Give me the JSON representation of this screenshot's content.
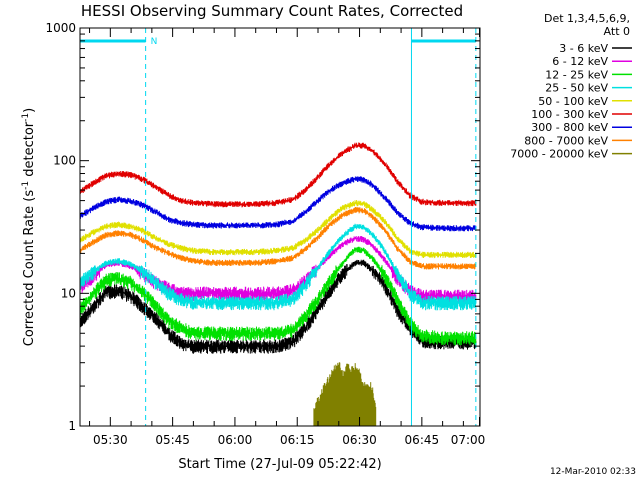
{
  "chart_data": {
    "type": "line",
    "title": "HESSI Observing Summary Count Rates, Corrected",
    "xlabel": "Start Time (27-Jul-09 05:22:42)",
    "ylabel": "Corrected Count Rate (s",
    "ylabel_sup1": "-1",
    "ylabel_mid": " detector",
    "ylabel_sup2": "-1",
    "ylabel_end": ")",
    "y_scale": "log",
    "ylim": [
      1,
      1000
    ],
    "y_ticks": [
      {
        "value": 1,
        "label": "1"
      },
      {
        "value": 10,
        "label": "10"
      },
      {
        "value": 100,
        "label": "100"
      },
      {
        "value": 1000,
        "label": "1000"
      }
    ],
    "xlim_minutes_after_0500": [
      22.7,
      119
    ],
    "x_ticks": [
      {
        "t": 30,
        "label": "05:30"
      },
      {
        "t": 45,
        "label": "05:45"
      },
      {
        "t": 60,
        "label": "06:00"
      },
      {
        "t": 75,
        "label": "06:15"
      },
      {
        "t": 90,
        "label": "06:30"
      },
      {
        "t": 105,
        "label": "06:45"
      },
      {
        "t": 120,
        "label": "07:00"
      }
    ],
    "legend": {
      "position": "right",
      "header": [
        "Det 1,3,4,5,6,9,",
        "Att 0"
      ]
    },
    "night_markers": {
      "day_bars": [
        [
          22.7,
          38.5
        ],
        [
          102.5,
          118
        ]
      ],
      "label": "N",
      "label_t": 39.5,
      "dashed_lines": [
        38.5,
        118
      ],
      "solid_lines": [
        22.7,
        102.5
      ]
    },
    "series": [
      {
        "name": "3 - 6 keV",
        "color": "#000000",
        "points": [
          [
            22.7,
            6
          ],
          [
            26,
            8
          ],
          [
            29,
            10.2
          ],
          [
            32,
            10.5
          ],
          [
            35,
            9.5
          ],
          [
            38,
            7.8
          ],
          [
            41,
            6.5
          ],
          [
            44,
            5
          ],
          [
            47,
            4.2
          ],
          [
            50,
            4
          ],
          [
            55,
            4
          ],
          [
            60,
            4
          ],
          [
            65,
            4
          ],
          [
            70,
            4
          ],
          [
            74,
            4.3
          ],
          [
            77,
            5.5
          ],
          [
            80,
            7.5
          ],
          [
            83,
            10.5
          ],
          [
            86,
            14
          ],
          [
            89,
            17
          ],
          [
            91,
            17
          ],
          [
            93,
            15
          ],
          [
            96,
            11.5
          ],
          [
            99,
            7.5
          ],
          [
            102,
            5.5
          ],
          [
            105,
            4.4
          ],
          [
            110,
            4.3
          ],
          [
            118,
            4.3
          ]
        ]
      },
      {
        "name": "6 - 12 keV",
        "color": "#e000e0",
        "points": [
          [
            22.7,
            11
          ],
          [
            26,
            13.5
          ],
          [
            29,
            16.5
          ],
          [
            32,
            17
          ],
          [
            35,
            16
          ],
          [
            38,
            14
          ],
          [
            41,
            12
          ],
          [
            44,
            10.8
          ],
          [
            47,
            10
          ],
          [
            50,
            10
          ],
          [
            55,
            10
          ],
          [
            60,
            10
          ],
          [
            65,
            10
          ],
          [
            70,
            10
          ],
          [
            74,
            10.5
          ],
          [
            77,
            12.5
          ],
          [
            80,
            15.5
          ],
          [
            83,
            19.5
          ],
          [
            86,
            23.5
          ],
          [
            89,
            26
          ],
          [
            91,
            25.5
          ],
          [
            93,
            23
          ],
          [
            96,
            18
          ],
          [
            99,
            13
          ],
          [
            102,
            10.5
          ],
          [
            105,
            9.5
          ],
          [
            110,
            9.5
          ],
          [
            118,
            9.5
          ]
        ]
      },
      {
        "name": "12 - 25 keV",
        "color": "#00e000",
        "points": [
          [
            22.7,
            7.5
          ],
          [
            26,
            10
          ],
          [
            29,
            12.5
          ],
          [
            32,
            13
          ],
          [
            35,
            12
          ],
          [
            38,
            10
          ],
          [
            41,
            8
          ],
          [
            44,
            6.2
          ],
          [
            47,
            5.5
          ],
          [
            50,
            5
          ],
          [
            55,
            5
          ],
          [
            60,
            5
          ],
          [
            65,
            5
          ],
          [
            70,
            5
          ],
          [
            74,
            5.3
          ],
          [
            77,
            6.7
          ],
          [
            80,
            9
          ],
          [
            83,
            12.5
          ],
          [
            86,
            17
          ],
          [
            89,
            21.5
          ],
          [
            91,
            21
          ],
          [
            93,
            18.5
          ],
          [
            96,
            13.5
          ],
          [
            99,
            9
          ],
          [
            102,
            6
          ],
          [
            105,
            4.8
          ],
          [
            110,
            4.6
          ],
          [
            118,
            4.6
          ]
        ]
      },
      {
        "name": "25 - 50 keV",
        "color": "#00e0e0",
        "points": [
          [
            22.7,
            12
          ],
          [
            26,
            14.5
          ],
          [
            29,
            17
          ],
          [
            32,
            17.5
          ],
          [
            35,
            16.5
          ],
          [
            38,
            14.5
          ],
          [
            41,
            12
          ],
          [
            44,
            10
          ],
          [
            47,
            9
          ],
          [
            50,
            8.5
          ],
          [
            55,
            8.5
          ],
          [
            60,
            8.5
          ],
          [
            65,
            8.5
          ],
          [
            70,
            8.5
          ],
          [
            74,
            9
          ],
          [
            77,
            11.5
          ],
          [
            80,
            15.5
          ],
          [
            83,
            21
          ],
          [
            86,
            27
          ],
          [
            89,
            32
          ],
          [
            91,
            31.5
          ],
          [
            93,
            28
          ],
          [
            96,
            21
          ],
          [
            99,
            14
          ],
          [
            102,
            10
          ],
          [
            105,
            8.5
          ],
          [
            110,
            8.5
          ],
          [
            118,
            8.5
          ]
        ]
      },
      {
        "name": "50 - 100 keV",
        "color": "#e0e000",
        "points": [
          [
            22.7,
            25
          ],
          [
            26,
            29
          ],
          [
            29,
            32
          ],
          [
            32,
            33
          ],
          [
            35,
            32
          ],
          [
            38,
            29.5
          ],
          [
            41,
            26
          ],
          [
            44,
            23.5
          ],
          [
            47,
            22
          ],
          [
            50,
            21
          ],
          [
            55,
            20.5
          ],
          [
            60,
            20.5
          ],
          [
            65,
            20.5
          ],
          [
            70,
            21
          ],
          [
            74,
            22
          ],
          [
            77,
            25
          ],
          [
            80,
            30
          ],
          [
            83,
            37
          ],
          [
            86,
            44
          ],
          [
            89,
            48
          ],
          [
            91,
            47.5
          ],
          [
            93,
            43
          ],
          [
            96,
            35
          ],
          [
            99,
            26
          ],
          [
            102,
            21
          ],
          [
            105,
            19.5
          ],
          [
            110,
            19.5
          ],
          [
            118,
            19.5
          ]
        ]
      },
      {
        "name": "100 - 300 keV",
        "color": "#e00000",
        "points": [
          [
            22.7,
            58
          ],
          [
            26,
            68
          ],
          [
            29,
            77
          ],
          [
            32,
            80
          ],
          [
            35,
            78
          ],
          [
            38,
            72
          ],
          [
            41,
            63
          ],
          [
            44,
            55
          ],
          [
            47,
            50
          ],
          [
            50,
            48
          ],
          [
            55,
            47
          ],
          [
            60,
            47
          ],
          [
            65,
            47
          ],
          [
            70,
            48
          ],
          [
            74,
            51
          ],
          [
            77,
            60
          ],
          [
            80,
            75
          ],
          [
            83,
            95
          ],
          [
            86,
            115
          ],
          [
            89,
            130
          ],
          [
            91,
            130
          ],
          [
            93,
            120
          ],
          [
            96,
            95
          ],
          [
            99,
            70
          ],
          [
            102,
            55
          ],
          [
            105,
            49
          ],
          [
            110,
            48
          ],
          [
            118,
            48
          ]
        ]
      },
      {
        "name": "300 - 800 keV",
        "color": "#0000e0",
        "points": [
          [
            22.7,
            38
          ],
          [
            26,
            44
          ],
          [
            29,
            49
          ],
          [
            32,
            51
          ],
          [
            35,
            49.5
          ],
          [
            38,
            46
          ],
          [
            41,
            41
          ],
          [
            44,
            36
          ],
          [
            47,
            34
          ],
          [
            50,
            33
          ],
          [
            55,
            32.5
          ],
          [
            60,
            32.5
          ],
          [
            65,
            32.5
          ],
          [
            70,
            33
          ],
          [
            74,
            35
          ],
          [
            77,
            41
          ],
          [
            80,
            50
          ],
          [
            83,
            60
          ],
          [
            86,
            68
          ],
          [
            89,
            73
          ],
          [
            91,
            72
          ],
          [
            93,
            66
          ],
          [
            96,
            53
          ],
          [
            99,
            41
          ],
          [
            102,
            34
          ],
          [
            105,
            31.5
          ],
          [
            110,
            31
          ],
          [
            118,
            31
          ]
        ]
      },
      {
        "name": "800 - 7000 keV",
        "color": "#ff8000",
        "points": [
          [
            22.7,
            21
          ],
          [
            26,
            24.5
          ],
          [
            29,
            27.5
          ],
          [
            32,
            28.5
          ],
          [
            35,
            27.5
          ],
          [
            38,
            25
          ],
          [
            41,
            22
          ],
          [
            44,
            20
          ],
          [
            47,
            18.5
          ],
          [
            50,
            17.5
          ],
          [
            55,
            17
          ],
          [
            60,
            17
          ],
          [
            65,
            17
          ],
          [
            70,
            17.5
          ],
          [
            74,
            18.5
          ],
          [
            77,
            21.5
          ],
          [
            80,
            26.5
          ],
          [
            83,
            33
          ],
          [
            86,
            39
          ],
          [
            89,
            42.5
          ],
          [
            91,
            42
          ],
          [
            93,
            38
          ],
          [
            96,
            30
          ],
          [
            99,
            22
          ],
          [
            102,
            17.5
          ],
          [
            105,
            16
          ],
          [
            110,
            16
          ],
          [
            118,
            16
          ]
        ]
      },
      {
        "name": "7000 - 20000 keV",
        "color": "#808000",
        "segments": [
          [
            [
              79,
              1.3
            ],
            [
              80,
              1.6
            ],
            [
              81,
              1.8
            ],
            [
              82,
              2.1
            ],
            [
              83,
              2.4
            ],
            [
              84,
              2.7
            ],
            [
              85,
              2.9
            ],
            [
              86,
              2.5
            ],
            [
              87,
              2.8
            ],
            [
              88,
              2.6
            ],
            [
              89,
              2.8
            ],
            [
              90,
              2.5
            ],
            [
              91,
              2.0
            ],
            [
              92,
              2.0
            ],
            [
              93,
              2.0
            ],
            [
              94,
              1.2
            ]
          ]
        ]
      }
    ],
    "footer": "12-Mar-2010 02:33"
  }
}
